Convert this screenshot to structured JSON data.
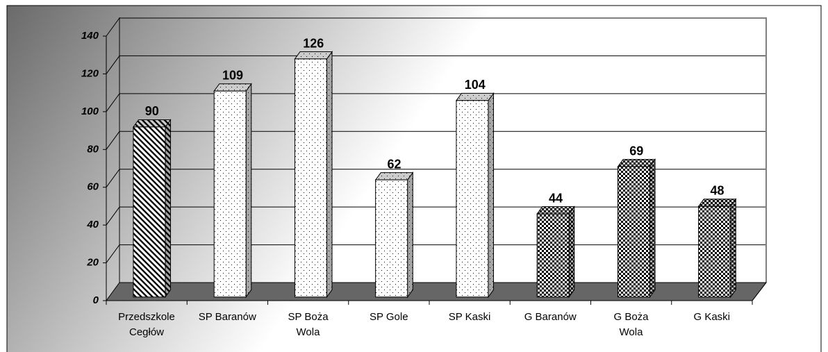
{
  "chart_data": {
    "type": "bar3d",
    "categories": [
      "Przedszkole\nCegłów",
      "SP Baranów",
      "SP Boża\nWola",
      "SP Gole",
      "SP Kaski",
      "G Baranów",
      "G Boża\nWola",
      "G Kaski"
    ],
    "values": [
      90,
      109,
      126,
      62,
      104,
      44,
      69,
      48
    ],
    "fills": [
      "stripes",
      "dots",
      "dots",
      "dots",
      "dots",
      "checks",
      "checks",
      "checks"
    ],
    "ylim": [
      0,
      140
    ],
    "yticks": [
      0,
      20,
      40,
      60,
      80,
      100,
      120,
      140
    ],
    "grid": true
  }
}
